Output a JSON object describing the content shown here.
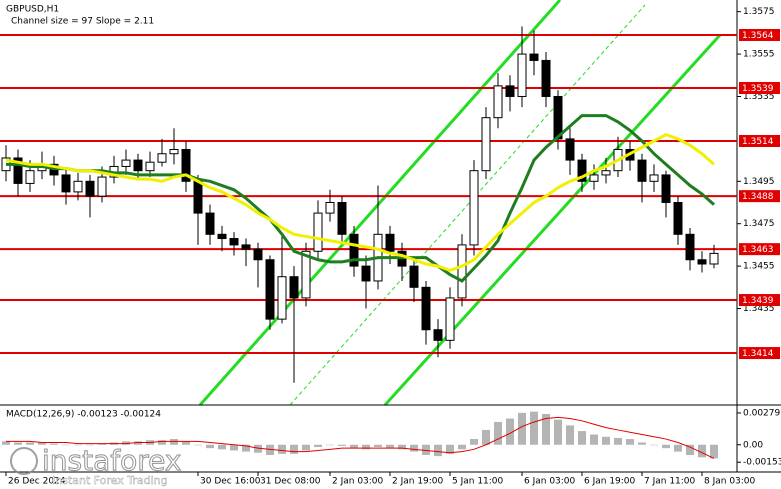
{
  "chart_data": [
    {
      "type": "candlestick",
      "title": "GBPUSD,H1",
      "subtitle": "Channel size = 97 Slope = 2.11",
      "categories": [
        "26 Dec 2024",
        null,
        null,
        null,
        null,
        null,
        null,
        null,
        null,
        null,
        null,
        null,
        null,
        null,
        null,
        null,
        "30 Dec 16:00",
        null,
        null,
        null,
        null,
        "31 Dec 08:00",
        null,
        null,
        null,
        null,
        null,
        "2 Jan 03:00",
        null,
        null,
        null,
        null,
        "2 Jan 19:00",
        null,
        null,
        null,
        null,
        "5 Jan 11:00",
        null,
        null,
        null,
        null,
        null,
        "6 Jan 03:00",
        null,
        null,
        null,
        null,
        "6 Jan 19:00",
        null,
        null,
        null,
        null,
        "7 Jan 11:00",
        null,
        null,
        null,
        null,
        "8 Jan 03:00",
        null
      ],
      "open": [
        1.35,
        1.3506,
        1.3494,
        1.35,
        1.3503,
        1.3498,
        1.349,
        1.3495,
        1.3488,
        1.3497,
        1.3502,
        1.3505,
        1.35,
        1.3504,
        1.3508,
        1.351,
        1.3495,
        1.348,
        1.347,
        1.3468,
        1.3465,
        1.3463,
        1.3458,
        1.343,
        1.345,
        1.344,
        1.3462,
        1.348,
        1.3485,
        1.347,
        1.3455,
        1.3448,
        1.347,
        1.3462,
        1.3455,
        1.3445,
        1.3425,
        1.342,
        1.344,
        1.3465,
        1.35,
        1.3525,
        1.354,
        1.3535,
        1.3555,
        1.3552,
        1.3535,
        1.3515,
        1.3505,
        1.3495,
        1.3498,
        1.35,
        1.351,
        1.3505,
        1.3495,
        1.3498,
        1.3485,
        1.347,
        1.3458,
        1.3456
      ],
      "high": [
        1.3512,
        1.351,
        1.3505,
        1.3509,
        1.3507,
        1.3501,
        1.3499,
        1.3498,
        1.3502,
        1.3507,
        1.351,
        1.3508,
        1.3509,
        1.3515,
        1.352,
        1.3514,
        1.3498,
        1.3484,
        1.3474,
        1.3471,
        1.3468,
        1.3466,
        1.346,
        1.347,
        1.3455,
        1.3466,
        1.3486,
        1.3491,
        1.3488,
        1.3474,
        1.346,
        1.3493,
        1.3474,
        1.3466,
        1.3458,
        1.3448,
        1.343,
        1.3445,
        1.347,
        1.3505,
        1.353,
        1.3546,
        1.3545,
        1.3568,
        1.3566,
        1.3556,
        1.3538,
        1.352,
        1.3508,
        1.3503,
        1.3506,
        1.3516,
        1.3514,
        1.3508,
        1.3503,
        1.35,
        1.3488,
        1.3473,
        1.3462,
        1.3465
      ],
      "low": [
        1.3495,
        1.3488,
        1.349,
        1.3496,
        1.3493,
        1.3484,
        1.3486,
        1.3478,
        1.3485,
        1.3494,
        1.3498,
        1.3496,
        1.3497,
        1.3502,
        1.3503,
        1.349,
        1.3465,
        1.3465,
        1.3462,
        1.346,
        1.3455,
        1.3445,
        1.3425,
        1.3428,
        1.34,
        1.3436,
        1.3458,
        1.3476,
        1.3466,
        1.345,
        1.3435,
        1.3444,
        1.3456,
        1.3448,
        1.3438,
        1.3418,
        1.3412,
        1.3416,
        1.3436,
        1.346,
        1.3496,
        1.352,
        1.3528,
        1.353,
        1.3545,
        1.353,
        1.351,
        1.3498,
        1.349,
        1.3491,
        1.3494,
        1.3497,
        1.35,
        1.3485,
        1.349,
        1.3478,
        1.3465,
        1.3453,
        1.3452,
        1.3454
      ],
      "close": [
        1.3506,
        1.3494,
        1.35,
        1.3503,
        1.3498,
        1.349,
        1.3495,
        1.3488,
        1.3497,
        1.3502,
        1.3505,
        1.35,
        1.3504,
        1.3508,
        1.351,
        1.3495,
        1.348,
        1.347,
        1.3468,
        1.3465,
        1.3463,
        1.3458,
        1.343,
        1.345,
        1.344,
        1.3462,
        1.348,
        1.3485,
        1.347,
        1.3455,
        1.3448,
        1.347,
        1.3462,
        1.3455,
        1.3445,
        1.3425,
        1.342,
        1.344,
        1.3465,
        1.35,
        1.3525,
        1.354,
        1.3535,
        1.3555,
        1.3552,
        1.3535,
        1.3515,
        1.3505,
        1.3495,
        1.3498,
        1.35,
        1.351,
        1.3505,
        1.3495,
        1.3498,
        1.3485,
        1.347,
        1.3458,
        1.3456,
        1.3461
      ],
      "up_color": "#ffffff",
      "down_color": "#000000",
      "wick_color": "#000000",
      "lines": [
        {
          "color": "#1e7d1e",
          "values": [
            1.3503,
            1.3503,
            1.3502,
            1.3502,
            1.3501,
            1.3501,
            1.35,
            1.35,
            1.35,
            1.3499,
            1.3499,
            1.3498,
            1.3498,
            1.3498,
            1.3498,
            1.3498,
            1.3496,
            1.3495,
            1.3493,
            1.3491,
            1.3487,
            1.3482,
            1.3477,
            1.347,
            1.3462,
            1.346,
            1.3458,
            1.3457,
            1.3457,
            1.3458,
            1.3458,
            1.3459,
            1.3459,
            1.3459,
            1.3459,
            1.3459,
            1.3455,
            1.3451,
            1.3448,
            1.3454,
            1.346,
            1.3467,
            1.348,
            1.3492,
            1.3505,
            1.3511,
            1.3516,
            1.3521,
            1.3526,
            1.3526,
            1.3526,
            1.3523,
            1.3519,
            1.3514,
            1.3508,
            1.3503,
            1.3498,
            1.3493,
            1.3489,
            1.3484
          ]
        },
        {
          "color": "#f0f000",
          "values": [
            1.3505,
            1.3504,
            1.3503,
            1.3503,
            1.3502,
            1.3501,
            1.35,
            1.35,
            1.3499,
            1.3498,
            1.3497,
            1.3496,
            1.3496,
            1.3495,
            1.3497,
            1.3498,
            1.3495,
            1.3492,
            1.349,
            1.3487,
            1.3484,
            1.348,
            1.3477,
            1.3473,
            1.347,
            1.3469,
            1.3468,
            1.3467,
            1.3466,
            1.3465,
            1.3464,
            1.3463,
            1.3461,
            1.346,
            1.3458,
            1.3456,
            1.3455,
            1.3453,
            1.3455,
            1.3458,
            1.3464,
            1.347,
            1.3475,
            1.348,
            1.3485,
            1.3488,
            1.3492,
            1.3495,
            1.3497,
            1.35,
            1.3502,
            1.3505,
            1.3508,
            1.3511,
            1.3514,
            1.3517,
            1.3515,
            1.3512,
            1.3508,
            1.3503
          ]
        }
      ],
      "levels": [
        1.3564,
        1.3539,
        1.3514,
        1.3488,
        1.3463,
        1.3439,
        1.3414
      ],
      "level_color": "#e00000",
      "ylim": [
        1.33895,
        1.35805
      ],
      "yticks": [
        1.3575,
        1.3555,
        1.3535,
        1.3495,
        1.3475,
        1.3455,
        1.3435
      ]
    },
    {
      "type": "macd",
      "title": "MACD(12,26,9) -0.00123 -0.00124",
      "values": [
        0.0003,
        0.0002,
        0.0002,
        0.0002,
        0.0001,
        0.0,
        0.0,
        0.0,
        0.0001,
        0.0002,
        0.0003,
        0.0003,
        0.0004,
        0.0004,
        0.0005,
        0.0003,
        0.0,
        -0.0003,
        -0.0004,
        -0.0005,
        -0.0006,
        -0.0007,
        -0.0009,
        -0.0008,
        -0.0008,
        -0.0005,
        -0.0002,
        0.0,
        -0.0001,
        -0.0003,
        -0.0004,
        -0.0002,
        -0.0003,
        -0.0004,
        -0.0006,
        -0.0009,
        -0.001,
        -0.0008,
        -0.0004,
        0.0005,
        0.0013,
        0.002,
        0.0023,
        0.0028,
        0.0029,
        0.0027,
        0.0022,
        0.0017,
        0.0012,
        0.0009,
        0.0007,
        0.0006,
        0.0005,
        0.0002,
        0.0,
        -0.0003,
        -0.0006,
        -0.0009,
        -0.0011,
        -0.0012
      ],
      "color": "#b4b4b4",
      "series": [
        {
          "color": "#e00000",
          "values": [
            0.0003,
            0.0003,
            0.0003,
            0.0002,
            0.0002,
            0.0002,
            0.0001,
            0.0001,
            0.0001,
            0.0001,
            0.0001,
            0.0002,
            0.0002,
            0.0003,
            0.0003,
            0.0003,
            0.0003,
            0.0002,
            0.0001,
            0.0,
            -0.0001,
            -0.0003,
            -0.0004,
            -0.0005,
            -0.0006,
            -0.0006,
            -0.0005,
            -0.0004,
            -0.0003,
            -0.0003,
            -0.0003,
            -0.0003,
            -0.0003,
            -0.0003,
            -0.0004,
            -0.0005,
            -0.0006,
            -0.0007,
            -0.0006,
            -0.0004,
            0.0,
            0.0005,
            0.001,
            0.0016,
            0.002,
            0.0023,
            0.0024,
            0.0023,
            0.0021,
            0.0018,
            0.0015,
            0.0013,
            0.0011,
            0.0009,
            0.0007,
            0.0005,
            0.0002,
            -0.0002,
            -0.0007,
            -0.0012
          ]
        }
      ],
      "ylim": [
        -0.00239,
        0.0034
      ],
      "yticks": [
        0.00279,
        {
          "value": 0,
          "label": "0.00"
        },
        -0.00153
      ]
    }
  ],
  "watermark": {
    "brand": "instaforex",
    "tagline": "Instant Forex Trading"
  }
}
